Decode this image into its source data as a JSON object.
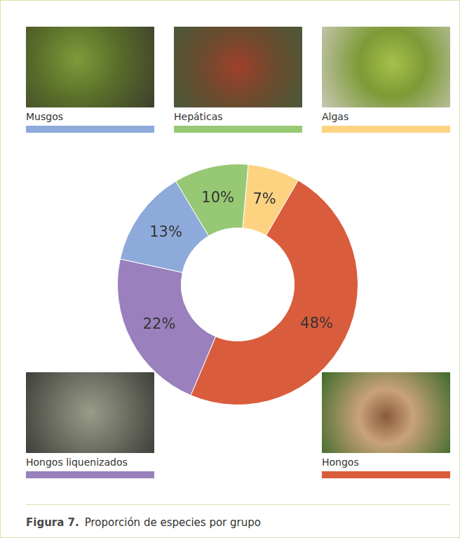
{
  "chart_data": {
    "type": "doughnut",
    "title": "Figura 7. Proporción de especies por grupo",
    "categories": [
      "Algas",
      "Hongos",
      "Hongos liquenizados",
      "Musgos",
      "Hepáticas"
    ],
    "values": [
      7,
      48,
      22,
      13,
      10
    ],
    "value_labels": [
      "7%",
      "48%",
      "22%",
      "13%",
      "10%"
    ],
    "colors": [
      "#fdd382",
      "#d95c3d",
      "#9a80bc",
      "#8eaadb",
      "#97c874"
    ],
    "data_labels": true
  }
}
